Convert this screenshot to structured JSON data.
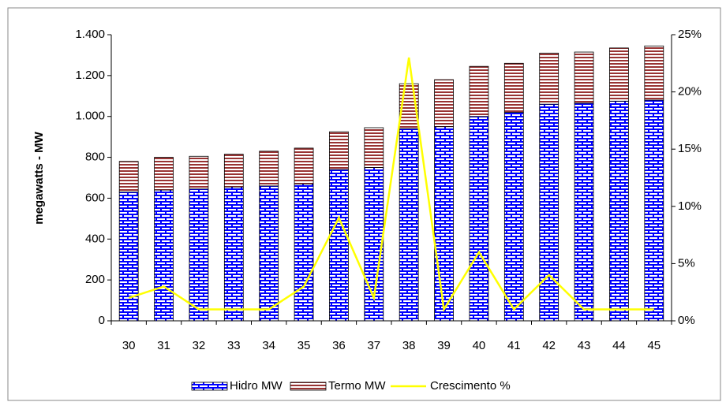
{
  "chart_data": {
    "type": "bar",
    "stacked": true,
    "y_label": "megawatts - MW",
    "categories": [
      "30",
      "31",
      "32",
      "33",
      "34",
      "35",
      "36",
      "37",
      "38",
      "39",
      "40",
      "41",
      "42",
      "43",
      "44",
      "45"
    ],
    "series": [
      {
        "name": "Hidro MW",
        "color": "#0000ff",
        "values": [
          630,
          640,
          645,
          655,
          660,
          670,
          740,
          750,
          940,
          950,
          1000,
          1020,
          1060,
          1065,
          1075,
          1080
        ]
      },
      {
        "name": "Termo MW",
        "color": "#993333",
        "values": [
          150,
          160,
          160,
          160,
          170,
          175,
          185,
          195,
          220,
          230,
          245,
          240,
          250,
          250,
          260,
          265
        ]
      },
      {
        "name": "Crescimento %",
        "color": "#ffff00",
        "type": "line",
        "axis": "y2",
        "values": [
          2,
          3,
          1,
          1,
          1,
          3,
          9,
          2,
          23,
          1,
          6,
          1,
          4,
          1,
          1,
          1
        ]
      }
    ],
    "ylim": [
      0,
      1400
    ],
    "yticks": [
      0,
      200,
      400,
      600,
      800,
      {
        "value": 1000,
        "label": "1.000"
      },
      {
        "value": 1200,
        "label": "1.200"
      },
      {
        "value": 1400,
        "label": "1.400"
      }
    ],
    "y2lim": [
      0,
      25
    ],
    "y2ticks": [
      {
        "value": 0,
        "label": "0%"
      },
      {
        "value": 5,
        "label": "5%"
      },
      {
        "value": 10,
        "label": "10%"
      },
      {
        "value": 15,
        "label": "15%"
      },
      {
        "value": 20,
        "label": "20%"
      },
      {
        "value": 25,
        "label": "25%"
      }
    ],
    "legend": "bottom",
    "grid": false
  }
}
